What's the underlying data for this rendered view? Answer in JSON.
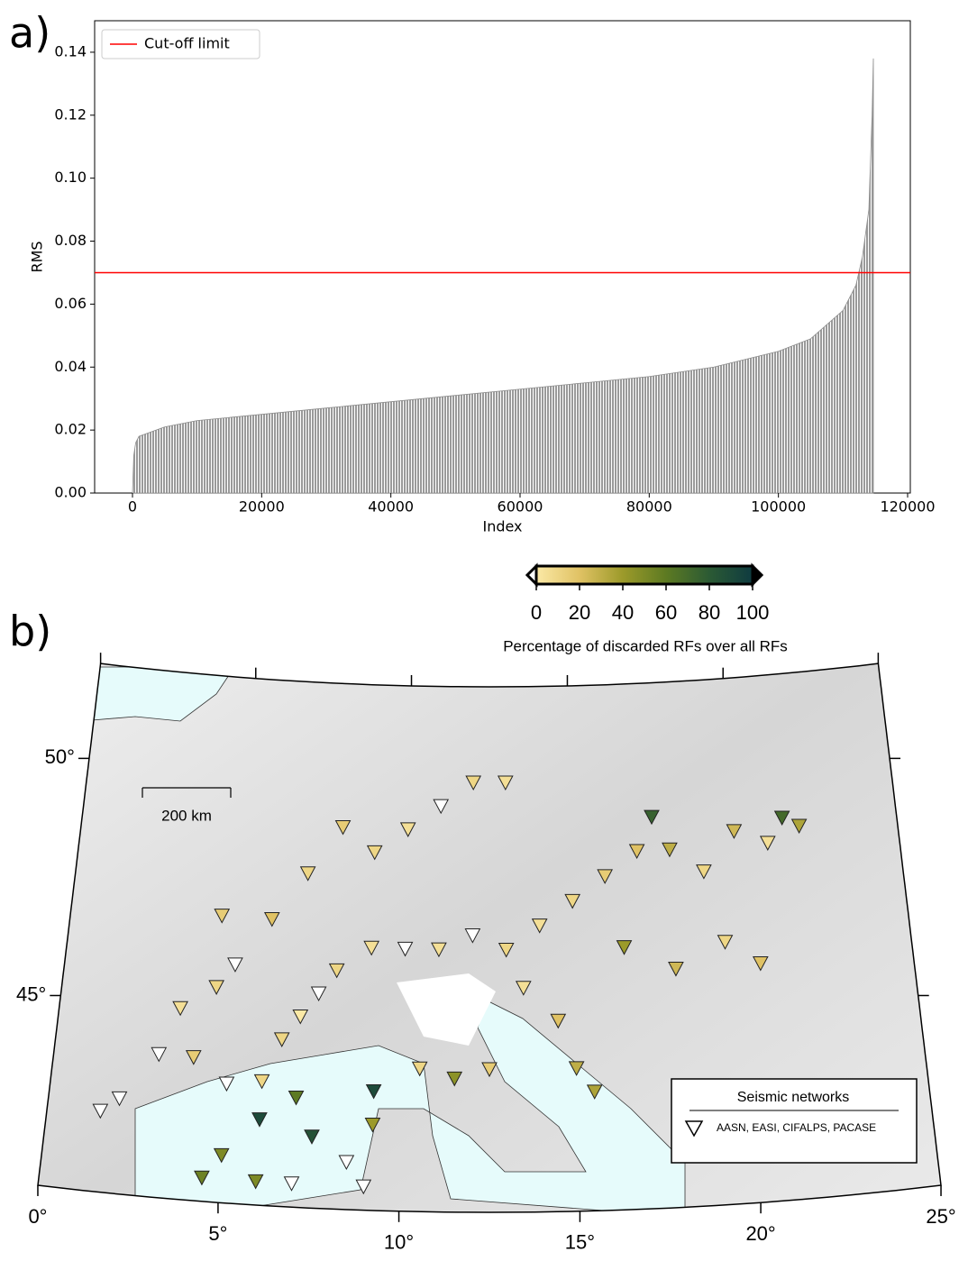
{
  "chart_data": [
    {
      "type": "area",
      "panel_label": "a)",
      "xlabel": "Index",
      "ylabel": "RMS",
      "x": [
        0,
        200,
        500,
        1000,
        5000,
        10000,
        20000,
        30000,
        40000,
        50000,
        60000,
        70000,
        80000,
        90000,
        100000,
        105000,
        110000,
        112000,
        113000,
        114000,
        114500,
        114700
      ],
      "values": [
        0,
        0.012,
        0.016,
        0.018,
        0.021,
        0.023,
        0.025,
        0.027,
        0.029,
        0.031,
        0.033,
        0.035,
        0.037,
        0.04,
        0.045,
        0.049,
        0.058,
        0.066,
        0.075,
        0.09,
        0.12,
        0.138
      ],
      "color": "#8c8c8c",
      "hline": {
        "value": 0.07,
        "name": "Cut-off limit",
        "color": "#ff0000"
      },
      "legend": "upper left",
      "xlim": [
        -5860,
        120420
      ],
      "xticks": [
        0,
        20000,
        40000,
        60000,
        80000,
        100000,
        120000
      ],
      "ylim": [
        0,
        0.15
      ],
      "yticks": [
        {
          "value": 0,
          "label": "0.00"
        },
        {
          "value": 0.02,
          "label": "0.02"
        },
        {
          "value": 0.04,
          "label": "0.04"
        },
        {
          "value": 0.06,
          "label": "0.06"
        },
        {
          "value": 0.08,
          "label": "0.08"
        },
        {
          "value": 0.1,
          "label": "0.10"
        },
        {
          "value": 0.12,
          "label": "0.12"
        },
        {
          "value": 0.14,
          "label": "0.14"
        }
      ]
    },
    {
      "type": "map",
      "panel_label": "b)",
      "xlim": [
        0,
        25
      ],
      "ylim": [
        41,
        52
      ],
      "xticks": [
        {
          "value": 0,
          "label": "0°"
        },
        {
          "value": 5,
          "label": "5°"
        },
        {
          "value": 10,
          "label": "10°"
        },
        {
          "value": 15,
          "label": "15°"
        },
        {
          "value": 20,
          "label": "20°"
        },
        {
          "value": 25,
          "label": "25°"
        }
      ],
      "yticks": [
        {
          "value": 45,
          "label": "45°"
        },
        {
          "value": 50,
          "label": "50°"
        }
      ],
      "colorbar": {
        "label": "Percentage of discarded RFs over all RFs",
        "clim": [
          0,
          100
        ],
        "ticks": [
          0,
          20,
          40,
          60,
          80,
          100
        ],
        "colormap": [
          "#fbe9a6",
          "#e0c264",
          "#9c9a2a",
          "#5d7a22",
          "#2b5a34",
          "#0f3b40"
        ]
      },
      "scale_bar": "200 km",
      "legend_title": "Seismic networks",
      "legend_entry": "AASN, EASI, CIFALPS, PACASE",
      "stations": {
        "lon": [
          7.0,
          6.5,
          7.5,
          8.0,
          9.0,
          10.0,
          11.0,
          12.0,
          13.0,
          14.0,
          15.0,
          16.0,
          17.0,
          18.0,
          19.0,
          20.0,
          21.0,
          22.0,
          21.5,
          17.5,
          16.5,
          18.0,
          19.5,
          20.5,
          9.0,
          10.0,
          11.0,
          12.0,
          13.0,
          8.0,
          7.0,
          6.0,
          5.0,
          4.5,
          3.5,
          3.0,
          4.0,
          5.0,
          6.0,
          7.0,
          7.5,
          6.0,
          5.0,
          4.5,
          6.0,
          7.0,
          9.2,
          9.2,
          10.5,
          11.5,
          12.5,
          13.5,
          14.5,
          15.0,
          15.5,
          8.5,
          9.0,
          2.0,
          4.5,
          1.5
        ],
        "lat": [
          45.0,
          44.5,
          45.5,
          46.0,
          46.5,
          46.5,
          46.5,
          46.8,
          46.5,
          47.0,
          47.5,
          48.0,
          48.5,
          48.5,
          48.0,
          48.8,
          48.5,
          48.8,
          49.0,
          49.2,
          46.5,
          46.0,
          46.5,
          46.0,
          48.5,
          49.0,
          49.5,
          50.0,
          50.0,
          49.0,
          48.0,
          47.0,
          46.0,
          45.5,
          45.0,
          44.0,
          44.0,
          43.5,
          43.6,
          43.3,
          42.5,
          42.8,
          42.0,
          41.5,
          41.5,
          41.5,
          43.5,
          42.8,
          44.0,
          43.8,
          44.0,
          45.7,
          45.0,
          44.0,
          43.5,
          42.0,
          41.5,
          43.0,
          47.0,
          42.7
        ],
        "values": [
          0,
          10,
          null,
          10,
          5,
          null,
          5,
          null,
          10,
          5,
          10,
          15,
          20,
          30,
          10,
          25,
          5,
          35,
          70,
          75,
          40,
          25,
          10,
          20,
          10,
          5,
          null,
          10,
          5,
          15,
          10,
          20,
          null,
          10,
          5,
          null,
          15,
          null,
          10,
          60,
          85,
          90,
          50,
          55,
          50,
          null,
          90,
          40,
          10,
          45,
          15,
          5,
          20,
          30,
          35,
          null,
          null,
          null,
          15,
          null
        ]
      }
    }
  ]
}
